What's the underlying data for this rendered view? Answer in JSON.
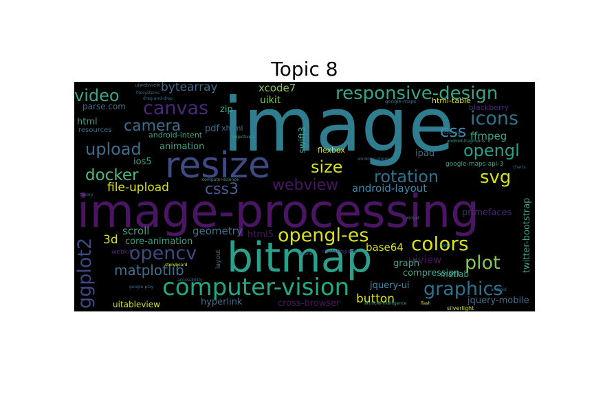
{
  "title": "Topic 8",
  "colors": {
    "teal": "#2a8a8f",
    "steel": "#3d6f8c",
    "indigo": "#4a5a94",
    "purple": "#4a1563",
    "deep_purple": "#3b1c58",
    "green": "#3aa38a",
    "lime": "#86c55a",
    "yellow": "#d8e219",
    "slate": "#404a82"
  },
  "words": {
    "image": "image",
    "image_processing": "image-processing",
    "bitmap": "bitmap",
    "resize": "resize",
    "computer_vision": "computer-vision",
    "responsive_design": "responsive-design",
    "canvas": "canvas",
    "video": "video",
    "bytearray": "bytearray",
    "icons": "icons",
    "camera": "camera",
    "upload": "upload",
    "css": "css",
    "opengl": "opengl",
    "ffmpeg": "ffmpeg",
    "docker": "docker",
    "size": "size",
    "rotation": "rotation",
    "svg": "svg",
    "css3": "css3",
    "webview": "webview",
    "file_upload": "file-upload",
    "android_layout": "android-layout",
    "opengl_es": "opengl-es",
    "colors": "colors",
    "opencv": "opencv",
    "plot": "plot",
    "matplotlib": "matplotlib",
    "graphics": "graphics",
    "ggplot2": "ggplot2",
    "button": "button",
    "scroll": "scroll",
    "geometry": "geometry",
    "core_animation": "core-animation",
    "html5": "html5",
    "base64": "base64",
    "3d": "3d",
    "uiview": "uiview",
    "compression": "compression",
    "graph": "graph",
    "jquery_ui": "jquery-ui",
    "matlab": "matlab",
    "jquery_mobile": "jquery-mobile",
    "cross_browser": "cross-browser",
    "hyperlink": "hyperlink",
    "uitableview": "uitableview",
    "twitter_bootstrap": "twitter-bootstrap",
    "primefaces": "primefaces",
    "html": "html",
    "parse_com": "parse.com",
    "zip": "zip",
    "pdf": "pdf",
    "xhtml": "xhtml",
    "xcode7": "xcode7",
    "uikit": "uikit",
    "swift3": "swift3",
    "animation": "animation",
    "ios5": "ios5",
    "android_intent": "android-intent",
    "ipad": "ipad",
    "flexbox": "flexbox",
    "html_table": "html-table",
    "blackberry": "blackberry",
    "google_maps_api_3": "google-maps-api-3",
    "resources": "resources",
    "webkit": "webkit",
    "layout": "layout",
    "crystal_reports": "crystal-reports",
    "silverlight": "silverlight",
    "google_maps": "google-maps",
    "uiwebview": "uiwebview",
    "filesystems": "filesystems",
    "computer_science": "computer-science",
    "artificial_intelligence": "artificial-intelligence",
    "storyboard": "storyboard",
    "accessibility": "accessibility",
    "google_play": "google-play",
    "drag_and_drop": "drag-and-drop",
    "android_fragments": "android-fragments",
    "windows_phone_7": "windows-phone-7",
    "objective_c": "objective-c",
    "caching": "caching",
    "android": "android",
    "charts": "charts",
    "theory": "theory",
    "widget": "widget",
    "iphone": "iphone",
    "fonts": "fonts",
    "flash": "flash"
  }
}
